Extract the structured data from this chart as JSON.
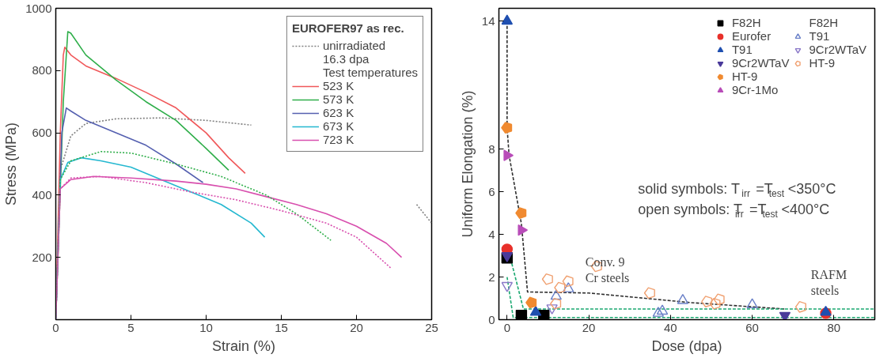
{
  "chart_data": [
    {
      "type": "line",
      "xlabel": "Strain (%)",
      "ylabel": "Stress (MPa)",
      "xlim": [
        0,
        25
      ],
      "xticks": [
        0,
        5,
        10,
        15,
        20,
        25
      ],
      "ylim": [
        0,
        1000
      ],
      "yticks": [
        200,
        400,
        600,
        800,
        1000
      ],
      "grid": false,
      "legend": "top right",
      "legend_title": "EUROFER97 as rec.",
      "line_style": "solid",
      "annotations": [
        "16.3 dpa",
        "Test temperatures"
      ],
      "series": [
        {
          "name": "unirradiated",
          "color": "#808080",
          "line_style": "dotted",
          "x": [
            0,
            0.3,
            1,
            2,
            4,
            7,
            10,
            13,
            16,
            19,
            22,
            24,
            25
          ],
          "values": [
            0,
            480,
            590,
            630,
            645,
            648,
            640,
            625,
            null,
            null,
            null,
            370,
            310
          ]
        },
        {
          "name": "523 K",
          "color": "#f0585a",
          "x": [
            0,
            0.3,
            0.5,
            0.6,
            1,
            2,
            4,
            6,
            8,
            10,
            11.5,
            12.6
          ],
          "values": [
            0,
            600,
            850,
            875,
            850,
            815,
            775,
            730,
            680,
            600,
            520,
            470
          ]
        },
        {
          "name": "573 K",
          "color": "#2fae4a",
          "x": [
            0,
            0.5,
            0.8,
            1.0,
            2,
            4,
            6,
            8,
            10,
            11.5
          ],
          "values": [
            0,
            700,
            925,
            920,
            850,
            770,
            700,
            640,
            550,
            480
          ]
        },
        {
          "name": "623 K",
          "color": "#5560b0",
          "x": [
            0,
            0.4,
            0.7,
            1,
            2,
            4,
            6,
            8,
            9.8
          ],
          "values": [
            0,
            600,
            680,
            670,
            640,
            600,
            560,
            500,
            440
          ]
        },
        {
          "name": "673 K",
          "color": "#25b8d0",
          "x": [
            0,
            0.3,
            0.8,
            1.7,
            3,
            5,
            7,
            9,
            11,
            13,
            13.9
          ],
          "values": [
            0,
            450,
            505,
            520,
            510,
            490,
            450,
            410,
            370,
            310,
            265
          ]
        },
        {
          "name": "723 K",
          "color": "#d84fae",
          "x": [
            0,
            0.3,
            1,
            2.5,
            5,
            8,
            10,
            12,
            14,
            16,
            18,
            20,
            22,
            23
          ],
          "values": [
            0,
            420,
            450,
            460,
            455,
            445,
            435,
            420,
            395,
            370,
            340,
            300,
            245,
            200
          ]
        },
        {
          "color": "#2fae4a",
          "line_style": "dotted",
          "x": [
            0,
            0.3,
            1,
            3,
            5,
            8,
            11,
            14,
            16,
            18.3
          ],
          "values": [
            0,
            450,
            510,
            540,
            535,
            500,
            460,
            400,
            340,
            255
          ]
        },
        {
          "color": "#d84fae",
          "line_style": "dotted",
          "x": [
            0,
            0.3,
            1,
            3,
            6,
            9,
            12,
            15,
            18,
            20,
            22.3
          ],
          "values": [
            0,
            420,
            455,
            460,
            440,
            410,
            385,
            350,
            310,
            265,
            165
          ]
        }
      ]
    },
    {
      "type": "scatter",
      "xlabel": "Dose (dpa)",
      "ylabel": "Uniform Elongation (%)",
      "xlim": [
        -2,
        90
      ],
      "xticks": [
        0,
        20,
        40,
        60,
        80
      ],
      "ylim": [
        0,
        14.6
      ],
      "yticks": [
        0,
        2,
        4,
        6,
        8,
        14
      ],
      "grid": false,
      "legend": "top right",
      "line_style": "dashed",
      "annotations": [
        "solid symbols: T$_{irr}$=T$_{test}$<350°C",
        "open symbols: T$_{irr}$=T$_{test}$<400°C",
        "Conv. 9\nCr steels",
        "RAFM\nsteels"
      ],
      "series": [
        {
          "type": "line",
          "color": "#303030",
          "x": [
            0,
            0,
            0.5,
            3.5,
            5,
            20,
            45,
            68
          ],
          "values": [
            14,
            9,
            7.7,
            4.5,
            1.3,
            1.25,
            0.8,
            0.5
          ]
        },
        {
          "type": "line",
          "color": "#1aa870",
          "x": [
            0,
            4,
            90
          ],
          "values": [
            3.5,
            0.5,
            0.5
          ]
        },
        {
          "type": "line",
          "color": "#1aa870",
          "x": [
            0,
            1.5,
            90
          ],
          "values": [
            2.0,
            0.1,
            0.1
          ]
        },
        {
          "name": "F82H",
          "color": "#000000",
          "marker": "square",
          "x": [
            0,
            3.5,
            9
          ],
          "values": [
            2.9,
            0.2,
            0.2
          ]
        },
        {
          "name": "Eurofer",
          "color": "#e8302a",
          "marker": "circle",
          "x": [
            0,
            78
          ],
          "values": [
            3.3,
            0.3
          ]
        },
        {
          "name": "T91",
          "color": "#1f4fb0",
          "marker": "triangle",
          "x": [
            0,
            7,
            78
          ],
          "values": [
            14,
            0.35,
            0.35
          ]
        },
        {
          "name": "9Cr2WTaV",
          "color": "#4a3a9a",
          "x": [
            0,
            68
          ],
          "values": [
            3.0,
            0.2
          ]
        },
        {
          "name": "HT-9",
          "color": "#f08a30",
          "x": [
            0,
            3.5,
            6
          ],
          "values": [
            9.0,
            5.0,
            0.8
          ]
        },
        {
          "name": "9Cr-1Mo",
          "color": "#b84cb8",
          "x": [
            0,
            3.5
          ],
          "values": [
            7.7,
            4.2
          ]
        },
        {
          "name": "F82H",
          "color": "#606060",
          "marker": "square"
        },
        {
          "name": "T91",
          "color": "#6a80c8",
          "marker": "triangle",
          "x": [
            12,
            15,
            37,
            38,
            43,
            60
          ],
          "values": [
            1.1,
            1.45,
            0.3,
            0.4,
            0.9,
            0.7
          ]
        },
        {
          "name": "9Cr2WTaV",
          "color": "#8a78c8",
          "x": [
            0,
            11
          ],
          "values": [
            1.6,
            0.55
          ]
        },
        {
          "name": "HT-9",
          "color": "#f0a070",
          "x": [
            10,
            12,
            13,
            15,
            22,
            35,
            49,
            51,
            52,
            72
          ],
          "values": [
            1.9,
            0.75,
            1.5,
            1.8,
            2.5,
            1.25,
            0.85,
            0.75,
            0.95,
            0.6
          ]
        }
      ]
    }
  ]
}
